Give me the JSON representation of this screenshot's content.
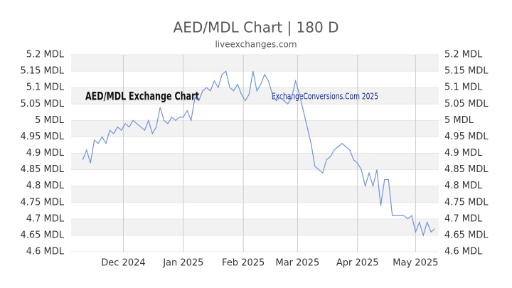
{
  "chart_data": {
    "type": "line",
    "title": "AED/MDL Chart | 180 D",
    "subtitle": "liveexchanges.com",
    "annotations": [
      "AED/MDL Exchange Chart",
      "ExchangeConversions.Com 2025"
    ],
    "series": [
      {
        "name": "AED/MDL",
        "color": "#6f94d6",
        "values": [
          4.88,
          4.91,
          4.87,
          4.94,
          4.93,
          4.95,
          4.93,
          4.97,
          4.96,
          4.98,
          4.97,
          4.99,
          4.98,
          5.0,
          4.99,
          4.98,
          4.97,
          5.0,
          4.96,
          4.98,
          5.04,
          5.0,
          4.99,
          5.01,
          5.0,
          5.01,
          5.01,
          5.03,
          5.0,
          5.07,
          5.06,
          5.09,
          5.1,
          5.09,
          5.12,
          5.1,
          5.14,
          5.15,
          5.1,
          5.09,
          5.11,
          5.08,
          5.06,
          5.08,
          5.15,
          5.09,
          5.11,
          5.14,
          5.12,
          5.08,
          5.06,
          5.07,
          5.06,
          5.05,
          5.07,
          5.12,
          5.08,
          5.03,
          4.98,
          4.93,
          4.86,
          4.85,
          4.84,
          4.88,
          4.89,
          4.91,
          4.92,
          4.93,
          4.92,
          4.91,
          4.88,
          4.87,
          4.85,
          4.8,
          4.84,
          4.8,
          4.85,
          4.74,
          4.82,
          4.82,
          4.71,
          4.71,
          4.71,
          4.71,
          4.7,
          4.71,
          4.66,
          4.69,
          4.65,
          4.69,
          4.66,
          4.67
        ]
      }
    ],
    "xlim": [
      -3,
      92
    ],
    "xticks": [
      {
        "value": 10.5,
        "label": "Dec 2024"
      },
      {
        "value": 26,
        "label": "Jan 2025"
      },
      {
        "value": 41.5,
        "label": "Feb 2025"
      },
      {
        "value": 55.5,
        "label": "Mar 2025"
      },
      {
        "value": 71,
        "label": "Apr 2025"
      },
      {
        "value": 86,
        "label": "May 2025"
      }
    ],
    "ylim": [
      4.6,
      5.2
    ],
    "yticks": [
      {
        "value": 4.6,
        "label": "4.6 MDL"
      },
      {
        "value": 4.65,
        "label": "4.65 MDL"
      },
      {
        "value": 4.7,
        "label": "4.7 MDL"
      },
      {
        "value": 4.75,
        "label": "4.75 MDL"
      },
      {
        "value": 4.8,
        "label": "4.8 MDL"
      },
      {
        "value": 4.85,
        "label": "4.85 MDL"
      },
      {
        "value": 4.9,
        "label": "4.9 MDL"
      },
      {
        "value": 4.95,
        "label": "4.95 MDL"
      },
      {
        "value": 5,
        "label": "5 MDL"
      },
      {
        "value": 5.05,
        "label": "5.05 MDL"
      },
      {
        "value": 5.1,
        "label": "5.1 MDL"
      },
      {
        "value": 5.15,
        "label": "5.15 MDL"
      },
      {
        "value": 5.2,
        "label": "5.2 MDL"
      }
    ],
    "grid": true
  }
}
